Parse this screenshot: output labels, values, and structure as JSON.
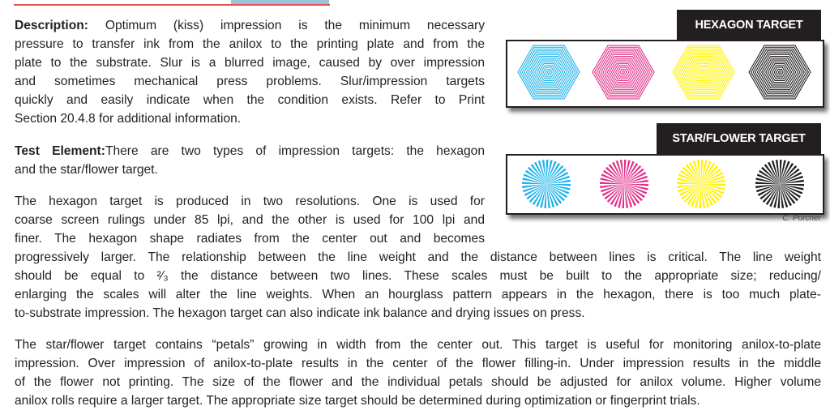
{
  "description": {
    "label": "Description:",
    "lines": [
      " Optimum (kiss) impression is the minimum necessary",
      "pressure to transfer ink from the anilox to the printing plate and from the",
      "plate to the substrate. Slur is a blurred image, caused by over impression",
      "and sometimes mechanical press problems. Slur/impression targets",
      "quickly and easily indicate when the condition exists. Refer to Print",
      "Section 20.4.8 for additional information."
    ]
  },
  "test_element": {
    "label": "Test Element:",
    "lines": [
      "There are two types of impression targets: the hexagon",
      "and the star/flower target."
    ]
  },
  "hexagon_paragraph": {
    "lines": [
      "The hexagon target is produced in two resolutions. One is used for",
      "coarse screen rulings under 85 lpi, and the other is used for 100 lpi and",
      "finer. The hexagon shape radiates from the center out and becomes",
      "progressively larger. The relationship between the line weight and the distance between lines is critical. The line weight",
      "should be equal to ²⁄₃ the distance between two lines. These scales must be built to the appropriate size; reducing/",
      "enlarging the scales will alter the line weights. When an hourglass pattern appears in the hexagon, there is too much plate-",
      "to-substrate impression. The hexagon target can also indicate ink balance and drying issues on press."
    ]
  },
  "star_paragraph": {
    "lines": [
      "The star/flower target contains “petals” growing in width from the center out. This target is useful for monitoring anilox-to-plate",
      "impression. Over impression of anilox-to-plate results in the center of the flower filling-in. Under impression results in the middle",
      "of the flower not printing. The size of the flower and the individual petals should be adjusted for anilox volume. Higher volume",
      "anilox rolls require a larger target. The appropriate size target should be determined during optimization or fingerprint trials."
    ]
  },
  "figure": {
    "hexagon_title": "HEXAGON TARGET",
    "star_title": "STAR/FLOWER TARGET",
    "credit": "C. Porcher",
    "colors": [
      "#1fb3e8",
      "#e0338a",
      "#fff200",
      "#231f20"
    ]
  }
}
